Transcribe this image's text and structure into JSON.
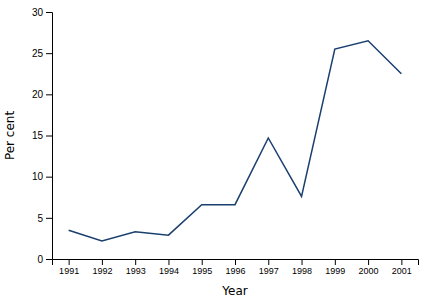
{
  "chart_data": {
    "type": "line",
    "xlabel": "Year",
    "ylabel": "Per cent",
    "x": [
      1991,
      1992,
      1993,
      1994,
      1995,
      1996,
      1997,
      1998,
      1999,
      2000,
      2001
    ],
    "values": [
      3.5,
      2.2,
      3.3,
      2.9,
      6.6,
      6.6,
      14.7,
      7.6,
      25.5,
      26.5,
      22.5
    ],
    "color": "#1a3f6f",
    "xlim": [
      1990.5,
      2001.5
    ],
    "xticks": [
      1991,
      1992,
      1993,
      1994,
      1995,
      1996,
      1997,
      1998,
      1999,
      2000,
      2001
    ],
    "ylim": [
      0,
      30
    ],
    "yticks": [
      0,
      5,
      10,
      15,
      20,
      25,
      30
    ]
  }
}
